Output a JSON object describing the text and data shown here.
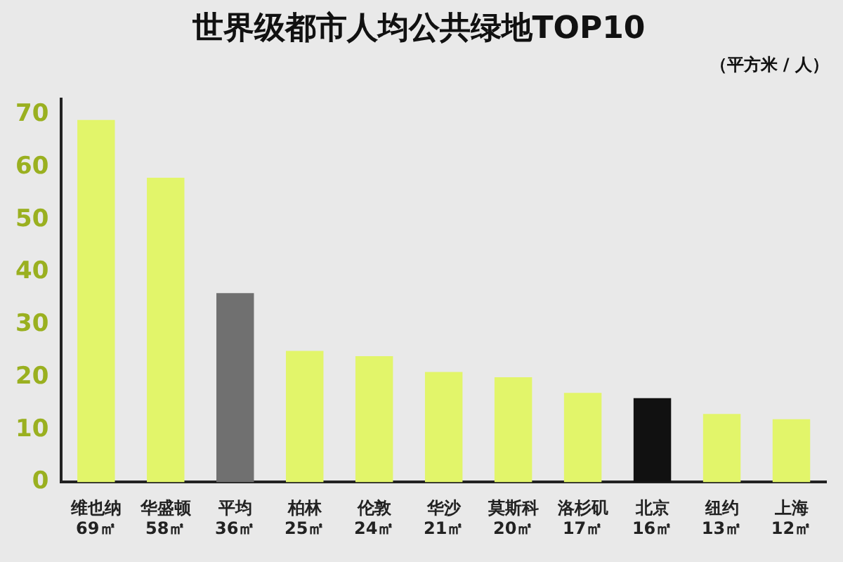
{
  "chart_data": {
    "type": "bar",
    "title": "世界级都市人均公共绿地TOP10",
    "annotations": [
      "（平方米 / 人）"
    ],
    "categories": [
      "维也纳",
      "华盛顿",
      "平均",
      "柏林",
      "伦敦",
      "华沙",
      "莫斯科",
      "洛杉矶",
      "北京",
      "纽约",
      "上海"
    ],
    "values": [
      69,
      58,
      36,
      25,
      24,
      21,
      20,
      17,
      16,
      13,
      12
    ],
    "value_labels": [
      "69㎡",
      "58㎡",
      "36㎡",
      "25㎡",
      "24㎡",
      "21㎡",
      "20㎡",
      "17㎡",
      "16㎡",
      "13㎡",
      "12㎡"
    ],
    "colors": [
      "#e2f56a",
      "#e2f56a",
      "#707070",
      "#e2f56a",
      "#e2f56a",
      "#e2f56a",
      "#e2f56a",
      "#e2f56a",
      "#111111",
      "#e2f56a",
      "#e2f56a"
    ],
    "ylim": [
      0,
      73
    ],
    "yticks": [
      0,
      10,
      20,
      30,
      40,
      50,
      60,
      70
    ],
    "grid": false,
    "legend": false
  }
}
